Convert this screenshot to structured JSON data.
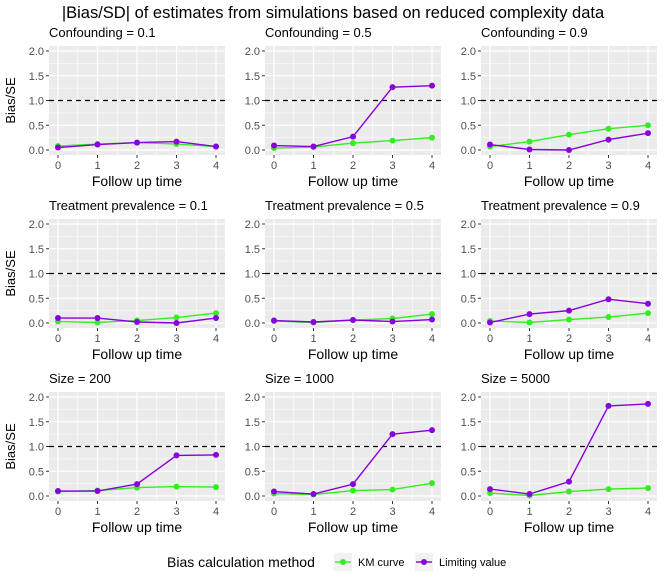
{
  "colors": {
    "panel_bg": "#EBEBEB",
    "grid": "#FFFFFF",
    "ref_line": "#000000",
    "km_curve": "#33EE22",
    "limiting_value": "#8800DD",
    "text": "#000000",
    "tick_text": "#4D4D4D"
  },
  "chart_data": {
    "type": "line",
    "title": "|Bias/SD| of estimates from simulations based on reduced complexity data",
    "x_label": "Follow up time",
    "y_label": "Bias/SE",
    "x_ticks": [
      0,
      1,
      2,
      3,
      4
    ],
    "y_ticks": [
      0.0,
      0.5,
      1.0,
      1.5,
      2.0
    ],
    "y_tick_labels": [
      "0.0",
      "0.5",
      "1.0",
      "1.5",
      "2.0"
    ],
    "xlim": [
      0,
      4
    ],
    "ylim": [
      0,
      2.0
    ],
    "reference_line": {
      "y": 1.0,
      "style": "dashed"
    },
    "grid": true,
    "legend": {
      "title": "Bias calculation method",
      "position": "bottom",
      "entries": [
        "KM curve",
        "Limiting value"
      ]
    },
    "panels": [
      {
        "title": "Confounding = 0.1",
        "series": [
          {
            "name": "KM curve",
            "values": [
              0.08,
              0.12,
              0.15,
              0.12,
              0.07
            ]
          },
          {
            "name": "Limiting value",
            "values": [
              0.05,
              0.11,
              0.15,
              0.17,
              0.07
            ]
          }
        ]
      },
      {
        "title": "Confounding = 0.5",
        "series": [
          {
            "name": "KM curve",
            "values": [
              0.04,
              0.06,
              0.14,
              0.19,
              0.25
            ]
          },
          {
            "name": "Limiting value",
            "values": [
              0.09,
              0.07,
              0.27,
              1.27,
              1.3
            ]
          }
        ]
      },
      {
        "title": "Confounding = 0.9",
        "series": [
          {
            "name": "KM curve",
            "values": [
              0.07,
              0.17,
              0.31,
              0.43,
              0.5
            ]
          },
          {
            "name": "Limiting value",
            "values": [
              0.11,
              0.01,
              0.0,
              0.21,
              0.34
            ]
          }
        ]
      },
      {
        "title": "Treatment prevalence = 0.1",
        "series": [
          {
            "name": "KM curve",
            "values": [
              0.03,
              0.01,
              0.05,
              0.11,
              0.2
            ]
          },
          {
            "name": "Limiting value",
            "values": [
              0.1,
              0.1,
              0.02,
              0.0,
              0.1
            ]
          }
        ]
      },
      {
        "title": "Treatment prevalence = 0.5",
        "series": [
          {
            "name": "KM curve",
            "values": [
              0.04,
              0.01,
              0.06,
              0.09,
              0.18
            ]
          },
          {
            "name": "Limiting value",
            "values": [
              0.05,
              0.02,
              0.06,
              0.03,
              0.07
            ]
          }
        ]
      },
      {
        "title": "Treatment prevalence = 0.9",
        "series": [
          {
            "name": "KM curve",
            "values": [
              0.04,
              0.01,
              0.07,
              0.12,
              0.2
            ]
          },
          {
            "name": "Limiting value",
            "values": [
              0.01,
              0.18,
              0.25,
              0.48,
              0.39
            ]
          }
        ]
      },
      {
        "title": "Size = 200",
        "series": [
          {
            "name": "KM curve",
            "values": [
              0.09,
              0.11,
              0.17,
              0.19,
              0.18
            ]
          },
          {
            "name": "Limiting value",
            "values": [
              0.1,
              0.1,
              0.24,
              0.82,
              0.83
            ]
          }
        ]
      },
      {
        "title": "Size = 1000",
        "series": [
          {
            "name": "KM curve",
            "values": [
              0.05,
              0.03,
              0.11,
              0.13,
              0.26
            ]
          },
          {
            "name": "Limiting value",
            "values": [
              0.09,
              0.04,
              0.24,
              1.25,
              1.33
            ]
          }
        ]
      },
      {
        "title": "Size = 5000",
        "series": [
          {
            "name": "KM curve",
            "values": [
              0.06,
              0.01,
              0.09,
              0.14,
              0.16
            ]
          },
          {
            "name": "Limiting value",
            "values": [
              0.14,
              0.04,
              0.29,
              1.82,
              1.86
            ]
          }
        ]
      }
    ]
  }
}
